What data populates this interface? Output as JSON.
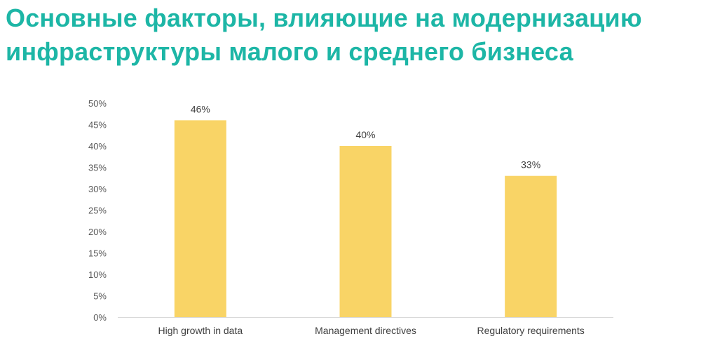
{
  "title": {
    "line1": "Основные факторы, влияющие на модернизацию",
    "line2": "инфраструктуры малого и среднего бизнеса"
  },
  "colors": {
    "title": "#1db6a6",
    "bar": "#f9d466",
    "axis": "#d9d9d9"
  },
  "chart_data": {
    "type": "bar",
    "categories": [
      "High growth in data",
      "Management directives",
      "Regulatory requirements"
    ],
    "values": [
      46,
      40,
      33
    ],
    "data_labels": [
      "46%",
      "40%",
      "33%"
    ],
    "ylim": [
      0,
      50
    ],
    "yticks": [
      0,
      5,
      10,
      15,
      20,
      25,
      30,
      35,
      40,
      45,
      50
    ],
    "ytick_labels": [
      "0%",
      "5%",
      "10%",
      "15%",
      "20%",
      "25%",
      "30%",
      "35%",
      "40%",
      "45%",
      "50%"
    ],
    "grid": false,
    "legend": "none",
    "xlabel": "",
    "ylabel": ""
  }
}
